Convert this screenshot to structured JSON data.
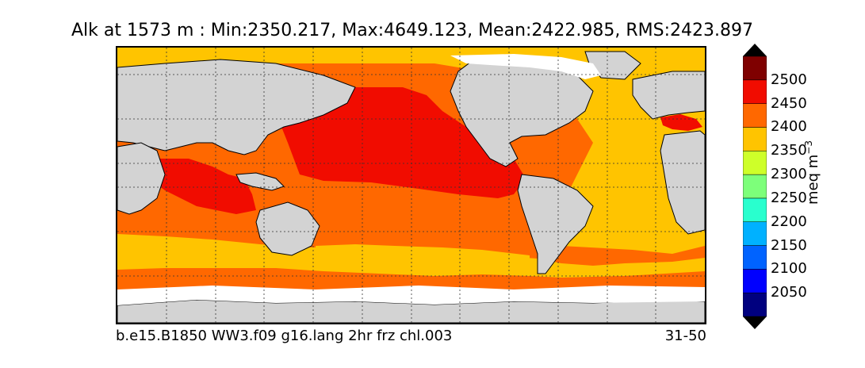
{
  "title": "Alk at 1573 m : Min:2350.217, Max:4649.123, Mean:2422.985, RMS:2423.897",
  "footer": {
    "case_name": "b.e15.B1850 WW3.f09 g16.lang 2hr frz chl.003",
    "years": "31-50"
  },
  "colorbar": {
    "unit_text": "meq m",
    "unit_exponent": "−3",
    "tick_labels": [
      "2500",
      "2450",
      "2400",
      "2350",
      "2300",
      "2250",
      "2200",
      "2150",
      "2100",
      "2050"
    ],
    "bands": [
      {
        "min": 2000,
        "max": 2050,
        "color": "#00007f"
      },
      {
        "min": 2050,
        "max": 2100,
        "color": "#0000ff"
      },
      {
        "min": 2100,
        "max": 2150,
        "color": "#0063ff"
      },
      {
        "min": 2150,
        "max": 2200,
        "color": "#00b1ff"
      },
      {
        "min": 2200,
        "max": 2250,
        "color": "#29ffce"
      },
      {
        "min": 2250,
        "max": 2300,
        "color": "#7dff7a"
      },
      {
        "min": 2300,
        "max": 2350,
        "color": "#ceff29"
      },
      {
        "min": 2350,
        "max": 2400,
        "color": "#ffc400"
      },
      {
        "min": 2400,
        "max": 2450,
        "color": "#ff6800"
      },
      {
        "min": 2450,
        "max": 2500,
        "color": "#f10c00"
      },
      {
        "min": 2500,
        "max": 2550,
        "color": "#7f0000"
      }
    ],
    "under_color": "#000000",
    "over_color": "#000000"
  },
  "map": {
    "land_color": "#d3d3d3",
    "missing_color": "#ffffff",
    "gridlines": "dotted"
  }
}
